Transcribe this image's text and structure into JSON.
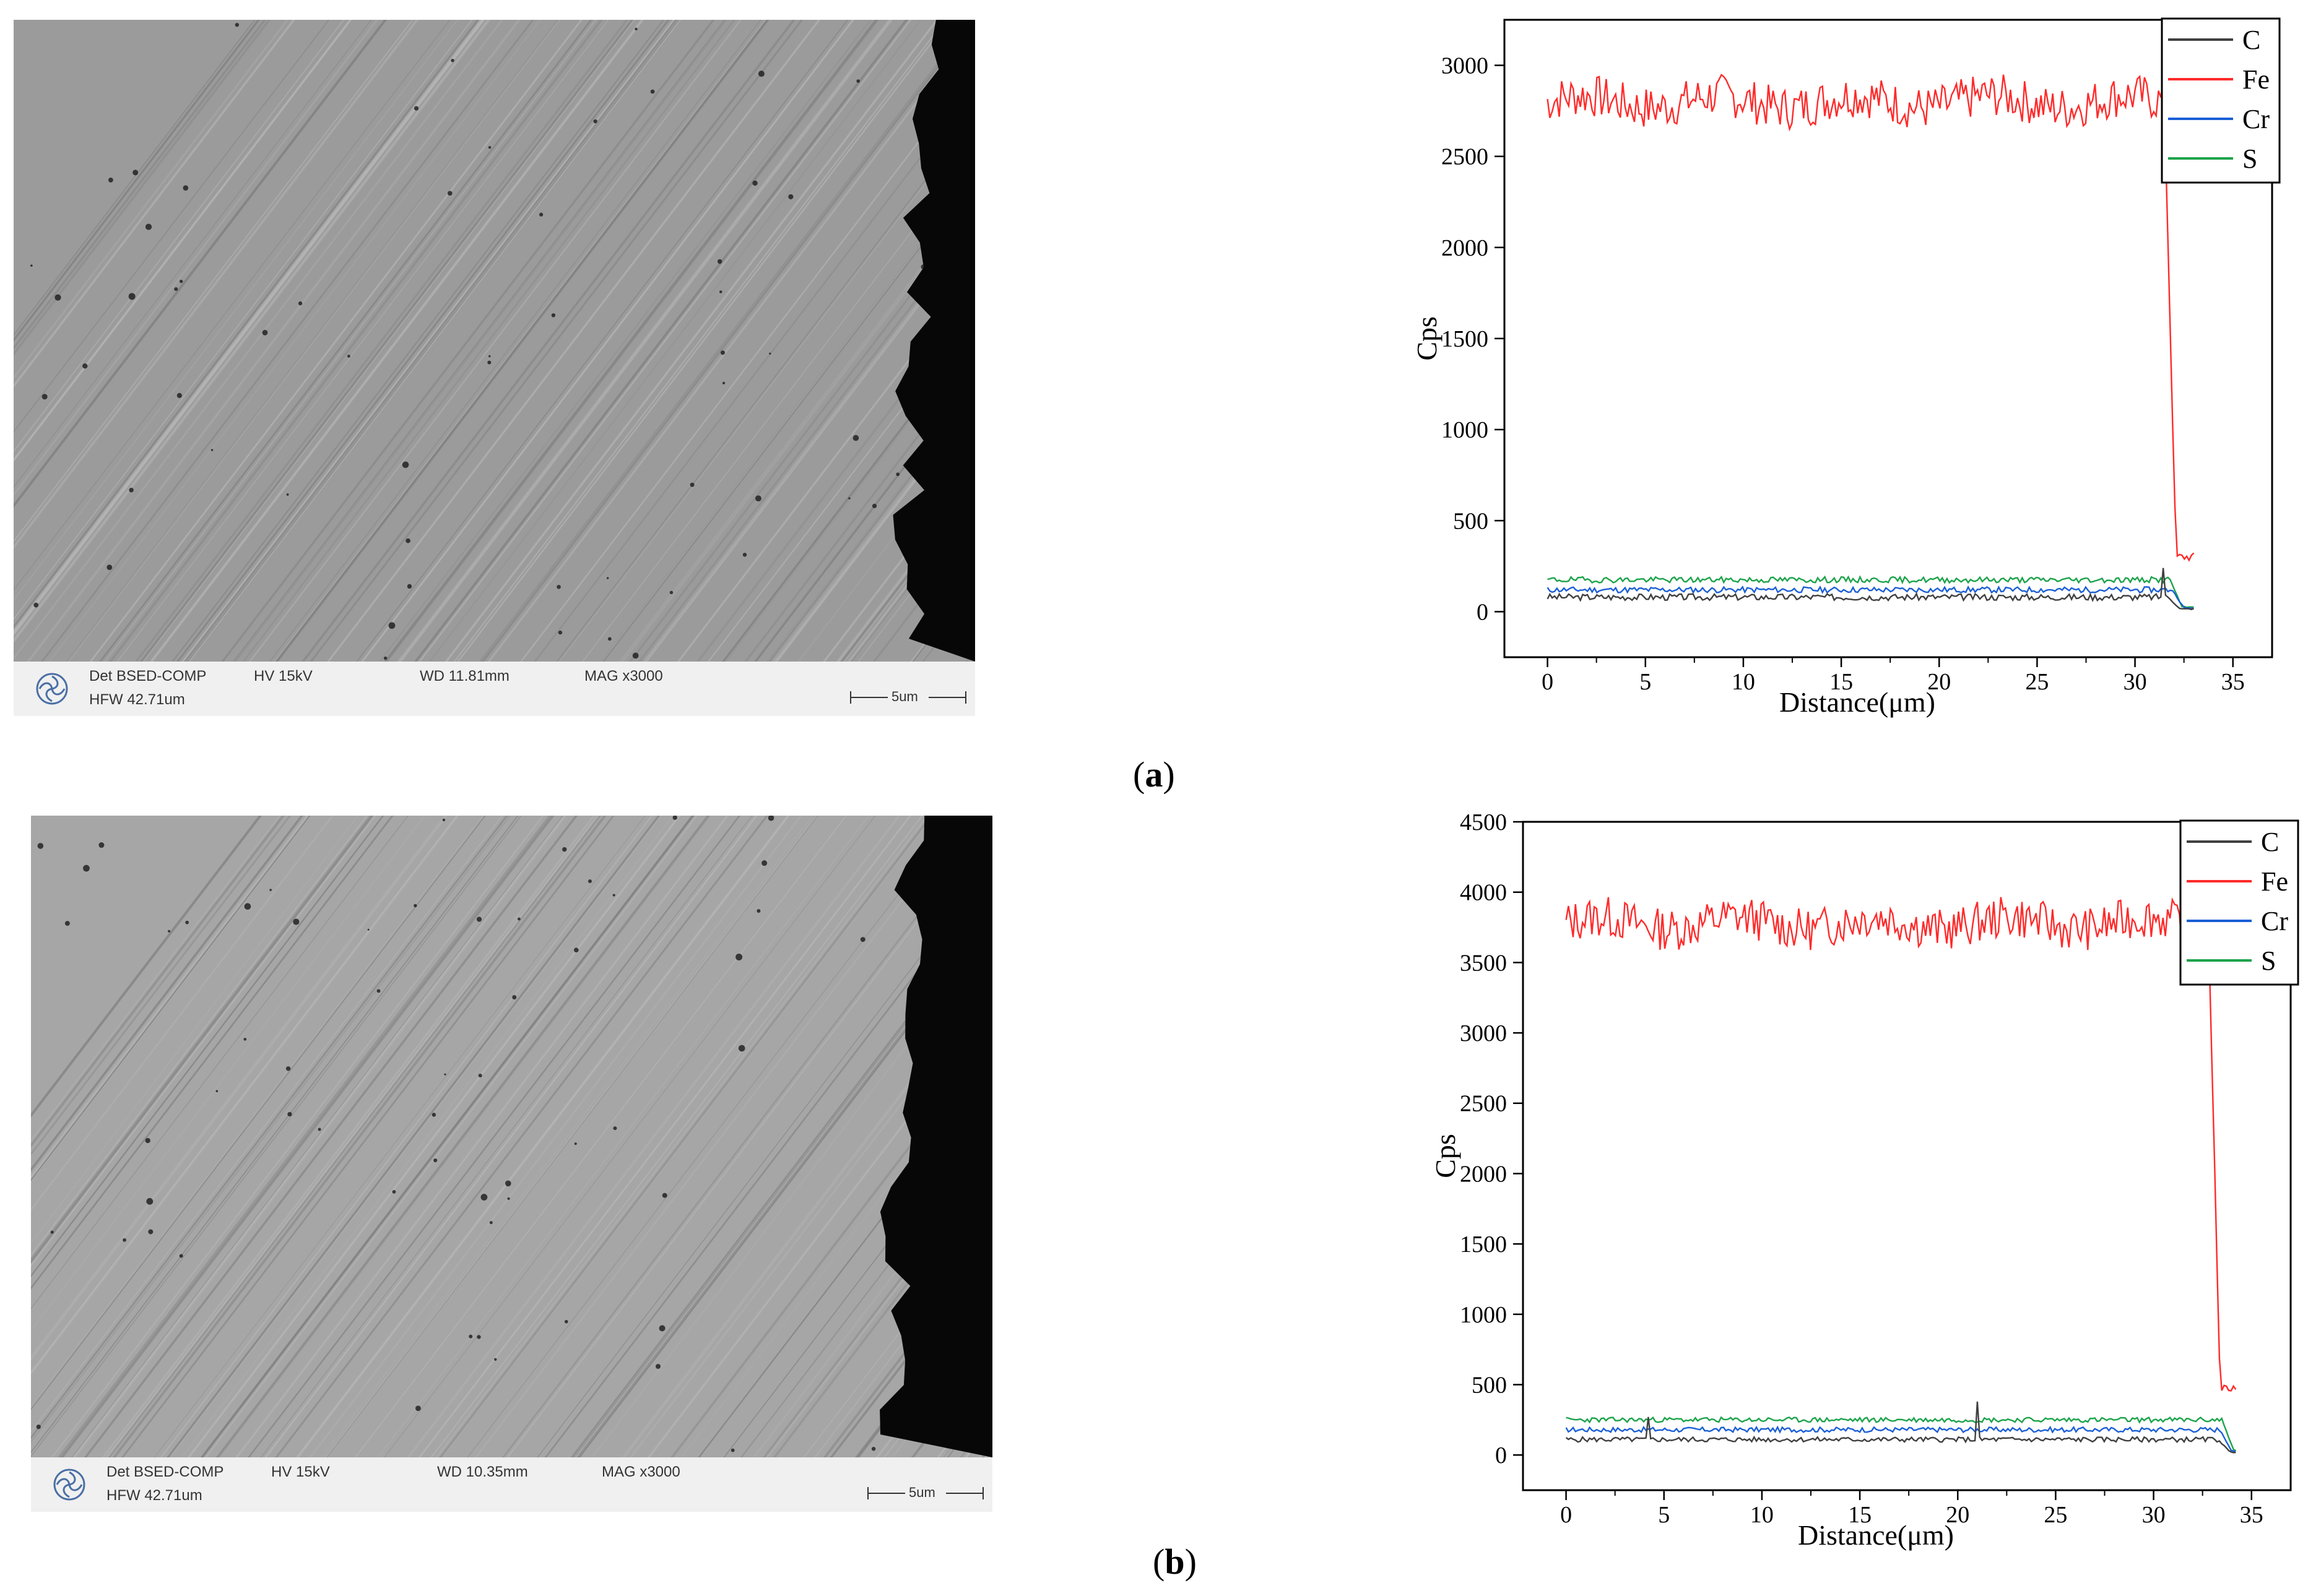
{
  "panels": [
    {
      "caption_letter": "a",
      "sem": {
        "det": "Det BSED-COMP",
        "hv": "HV 15kV",
        "wd": "WD 11.81mm",
        "mag": "MAG x3000",
        "hfw": "HFW 42.71um",
        "scale": "5um"
      },
      "chart_data": {
        "type": "line",
        "title": "",
        "xlabel": "Distance(μm)",
        "ylabel": "Cps",
        "xlim": [
          -2.2,
          37
        ],
        "ylim": [
          -250,
          3250
        ],
        "xticks": [
          0,
          5,
          10,
          15,
          20,
          25,
          30,
          35
        ],
        "yticks": [
          0,
          500,
          1000,
          1500,
          2000,
          2500,
          3000
        ],
        "legend_position": "top-right",
        "series": [
          {
            "name": "C",
            "color": "#404040",
            "base": 80,
            "noise": 18,
            "drop_at": 31.7,
            "end": 33.1,
            "tail": 15,
            "spike_x": 31.4,
            "spike_y": 240,
            "seed": 3
          },
          {
            "name": "Fe",
            "color": "#ff2a2a",
            "base": 2800,
            "noise": 120,
            "drop_at": 31.5,
            "end": 33.1,
            "tail": 300,
            "seed": 7,
            "fe": true
          },
          {
            "name": "Cr",
            "color": "#1a5fd6",
            "base": 120,
            "noise": 16,
            "drop_at": 31.9,
            "end": 33.1,
            "tail": 20,
            "seed": 11
          },
          {
            "name": "S",
            "color": "#1ca34a",
            "base": 175,
            "noise": 16,
            "drop_at": 31.8,
            "end": 33.1,
            "tail": 25,
            "seed": 19
          }
        ]
      }
    },
    {
      "caption_letter": "b",
      "sem": {
        "det": "Det BSED-COMP",
        "hv": "HV 15kV",
        "wd": "WD 10.35mm",
        "mag": "MAG x3000",
        "hfw": "HFW 42.71um",
        "scale": "5um"
      },
      "chart_data": {
        "type": "line",
        "title": "",
        "xlabel": "Distance(μm)",
        "ylabel": "Cps",
        "xlim": [
          -2.2,
          37
        ],
        "ylim": [
          -250,
          4500
        ],
        "xticks": [
          0,
          5,
          10,
          15,
          20,
          25,
          30,
          35
        ],
        "yticks": [
          0,
          500,
          1000,
          1500,
          2000,
          2500,
          3000,
          3500,
          4000,
          4500
        ],
        "legend_position": "top-right",
        "series": [
          {
            "name": "C",
            "color": "#404040",
            "base": 110,
            "noise": 18,
            "drop_at": 33.3,
            "end": 34.2,
            "tail": 20,
            "spike_x": 21.0,
            "spike_y": 380,
            "spike2_x": 4.2,
            "spike2_y": 270,
            "seed": 5
          },
          {
            "name": "Fe",
            "color": "#ff2a2a",
            "base": 3780,
            "noise": 150,
            "drop_at": 32.8,
            "end": 34.2,
            "tail": 480,
            "seed": 13,
            "fe": true
          },
          {
            "name": "Cr",
            "color": "#1a5fd6",
            "base": 180,
            "noise": 18,
            "drop_at": 33.4,
            "end": 34.2,
            "tail": 25,
            "seed": 17
          },
          {
            "name": "S",
            "color": "#1ca34a",
            "base": 250,
            "noise": 18,
            "drop_at": 33.5,
            "end": 34.2,
            "tail": 30,
            "seed": 23
          }
        ]
      }
    }
  ]
}
